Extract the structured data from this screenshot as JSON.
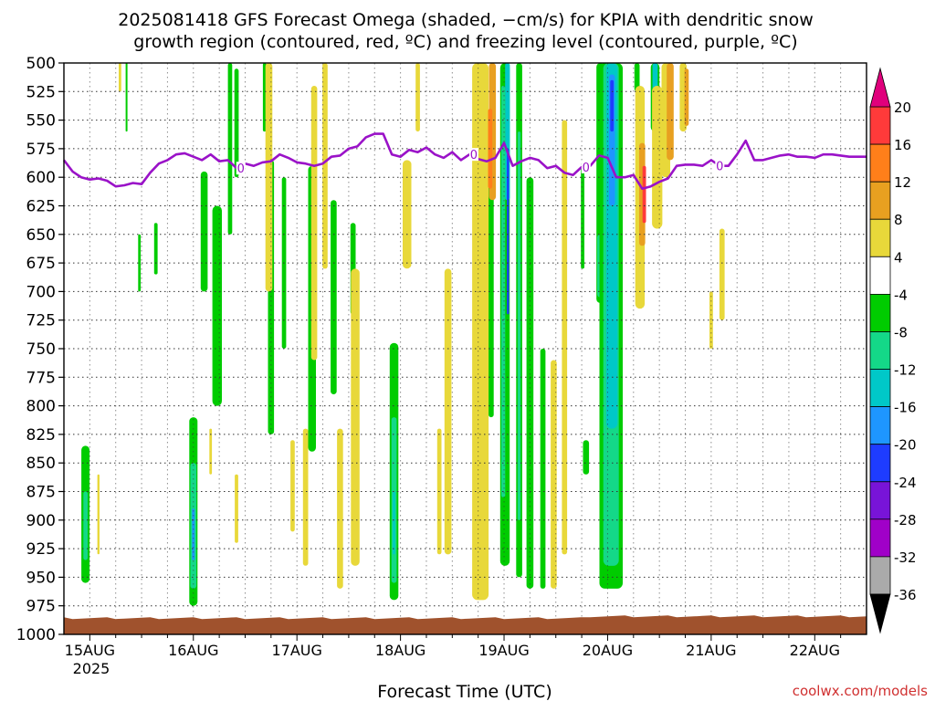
{
  "title_line1": "2025081418 GFS Forecast Omega (shaded, −cm/s) for KPIA with dendritic snow",
  "title_line2": "growth region (contoured, red, ºC) and freezing level (contoured, purple, ºC)",
  "credit": "coolwx.com/models",
  "chart_data": {
    "type": "heatmap",
    "xlabel": "Forecast Time (UTC)",
    "year_label": "2025",
    "x_unit": "hours since 2025-08-14 18Z",
    "xlim": [
      0,
      186
    ],
    "ylim": [
      1000,
      500
    ],
    "y_ticks": [
      500,
      525,
      550,
      575,
      600,
      625,
      650,
      675,
      700,
      725,
      750,
      775,
      800,
      825,
      850,
      875,
      900,
      925,
      950,
      975,
      1000
    ],
    "x_ticks": [
      {
        "t": 6,
        "label": "15AUG"
      },
      {
        "t": 30,
        "label": "16AUG"
      },
      {
        "t": 54,
        "label": "17AUG"
      },
      {
        "t": 78,
        "label": "18AUG"
      },
      {
        "t": 102,
        "label": "19AUG"
      },
      {
        "t": 126,
        "label": "20AUG"
      },
      {
        "t": 150,
        "label": "21AUG"
      },
      {
        "t": 174,
        "label": "22AUG"
      }
    ],
    "colorbar": {
      "levels": [
        20,
        16,
        12,
        8,
        4,
        -4,
        -8,
        -12,
        -16,
        -20,
        -24,
        -28,
        -32,
        -36
      ],
      "bins": [
        {
          "from": 16,
          "to": 20,
          "color": "#ff3a3a"
        },
        {
          "from": 12,
          "to": 16,
          "color": "#ff7f1a"
        },
        {
          "from": 8,
          "to": 12,
          "color": "#e8a020"
        },
        {
          "from": 4,
          "to": 8,
          "color": "#e8d83a"
        },
        {
          "from": -4,
          "to": 4,
          "color": "#ffffff"
        },
        {
          "from": -8,
          "to": -4,
          "color": "#00cc00"
        },
        {
          "from": -12,
          "to": -8,
          "color": "#14d888"
        },
        {
          "from": -16,
          "to": -12,
          "color": "#00c8c8"
        },
        {
          "from": -20,
          "to": -16,
          "color": "#1e96ff"
        },
        {
          "from": -24,
          "to": -20,
          "color": "#1e3cff"
        },
        {
          "from": -28,
          "to": -24,
          "color": "#7814d8"
        },
        {
          "from": -32,
          "to": -28,
          "color": "#a000c8"
        },
        {
          "from": -36,
          "to": -32,
          "color": "#aaaaaa"
        }
      ],
      "top_arrow_color": "#e0007c",
      "bottom_arrow_color": "#000000"
    },
    "freezing_level": {
      "color": "#9a12c8",
      "contour_label": "0",
      "times": [
        0,
        2,
        4,
        6,
        8,
        10,
        12,
        14,
        16,
        18,
        20,
        22,
        24,
        26,
        28,
        30,
        32,
        34,
        36,
        38,
        40,
        42,
        44,
        46,
        48,
        50,
        52,
        54,
        56,
        58,
        60,
        62,
        64,
        66,
        68,
        70,
        72,
        74,
        76,
        78,
        80,
        82,
        84,
        86,
        88,
        90,
        92,
        94,
        96,
        98,
        100,
        102,
        104,
        106,
        108,
        110,
        112,
        114,
        116,
        118,
        120,
        122,
        124,
        126,
        128,
        130,
        132,
        134,
        136,
        138,
        140,
        142,
        144,
        146,
        148,
        150,
        152,
        154,
        156,
        158,
        160,
        162,
        164,
        166,
        168,
        170,
        172,
        174,
        176,
        178,
        180,
        182,
        184,
        186
      ],
      "pressure": [
        585,
        595,
        600,
        602,
        601,
        603,
        608,
        607,
        605,
        606,
        596,
        588,
        585,
        580,
        579,
        582,
        585,
        580,
        586,
        585,
        592,
        588,
        590,
        587,
        586,
        580,
        583,
        587,
        588,
        590,
        588,
        582,
        581,
        575,
        573,
        565,
        562,
        562,
        580,
        582,
        576,
        578,
        574,
        580,
        583,
        578,
        585,
        580,
        584,
        586,
        583,
        570,
        590,
        586,
        583,
        585,
        592,
        590,
        596,
        598,
        591,
        590,
        581,
        583,
        600,
        600,
        598,
        610,
        608,
        604,
        601,
        590,
        589,
        589,
        590,
        585,
        590,
        590,
        580,
        568,
        585,
        585,
        583,
        581,
        580,
        582,
        582,
        583,
        580,
        580,
        581,
        582,
        582,
        582
      ]
    },
    "cells": [
      {
        "t": 5.0,
        "p0": 835,
        "p1": 955,
        "w": 1.9,
        "value": -6
      },
      {
        "t": 5.0,
        "p0": 875,
        "p1": 935,
        "w": 1.0,
        "value": -10
      },
      {
        "t": 30.0,
        "p0": 810,
        "p1": 975,
        "w": 1.9,
        "value": -6
      },
      {
        "t": 30.0,
        "p0": 850,
        "p1": 960,
        "w": 1.4,
        "value": -10
      },
      {
        "t": 30.0,
        "p0": 890,
        "p1": 935,
        "w": 0.6,
        "value": -17
      },
      {
        "t": 76.5,
        "p0": 745,
        "p1": 970,
        "w": 2.0,
        "value": -6
      },
      {
        "t": 76.5,
        "p0": 810,
        "p1": 955,
        "w": 1.2,
        "value": -10
      },
      {
        "t": 76.5,
        "p0": 875,
        "p1": 930,
        "w": 0.5,
        "value": -14
      },
      {
        "t": 35.5,
        "p0": 625,
        "p1": 800,
        "w": 2.2,
        "value": -6
      },
      {
        "t": 32.5,
        "p0": 595,
        "p1": 700,
        "w": 1.6,
        "value": -6
      },
      {
        "t": 38.5,
        "p0": 500,
        "p1": 650,
        "w": 1.0,
        "value": -6
      },
      {
        "t": 40.0,
        "p0": 505,
        "p1": 600,
        "w": 1.0,
        "value": -6
      },
      {
        "t": 46.5,
        "p0": 500,
        "p1": 560,
        "w": 0.8,
        "value": -6
      },
      {
        "t": 48.0,
        "p0": 585,
        "p1": 825,
        "w": 1.4,
        "value": -6
      },
      {
        "t": 51.0,
        "p0": 600,
        "p1": 750,
        "w": 1.0,
        "value": -6
      },
      {
        "t": 57.5,
        "p0": 590,
        "p1": 840,
        "w": 1.8,
        "value": -6
      },
      {
        "t": 62.5,
        "p0": 620,
        "p1": 790,
        "w": 1.4,
        "value": -6
      },
      {
        "t": 67.0,
        "p0": 640,
        "p1": 720,
        "w": 1.2,
        "value": -6
      },
      {
        "t": 17.5,
        "p0": 650,
        "p1": 700,
        "w": 0.6,
        "value": -6
      },
      {
        "t": 14.5,
        "p0": 500,
        "p1": 560,
        "w": 0.4,
        "value": -6
      },
      {
        "t": 99.0,
        "p0": 590,
        "p1": 810,
        "w": 1.2,
        "value": -6
      },
      {
        "t": 102.2,
        "p0": 500,
        "p1": 940,
        "w": 2.2,
        "value": -6
      },
      {
        "t": 102.8,
        "p0": 500,
        "p1": 620,
        "w": 1.1,
        "value": -14
      },
      {
        "t": 101.8,
        "p0": 520,
        "p1": 880,
        "w": 0.9,
        "value": -10
      },
      {
        "t": 102.9,
        "p0": 575,
        "p1": 720,
        "w": 0.5,
        "value": -22
      },
      {
        "t": 105.5,
        "p0": 500,
        "p1": 950,
        "w": 1.4,
        "value": -6
      },
      {
        "t": 105.5,
        "p0": 560,
        "p1": 900,
        "w": 0.7,
        "value": -10
      },
      {
        "t": 108.0,
        "p0": 600,
        "p1": 960,
        "w": 1.6,
        "value": -6
      },
      {
        "t": 111.0,
        "p0": 750,
        "p1": 960,
        "w": 1.2,
        "value": -6
      },
      {
        "t": 120.2,
        "p0": 590,
        "p1": 680,
        "w": 0.8,
        "value": -6
      },
      {
        "t": 121.0,
        "p0": 830,
        "p1": 860,
        "w": 1.4,
        "value": -6
      },
      {
        "t": 124.3,
        "p0": 500,
        "p1": 710,
        "w": 1.8,
        "value": -6
      },
      {
        "t": 124.3,
        "p0": 650,
        "p1": 705,
        "w": 1.4,
        "value": -10
      },
      {
        "t": 126.8,
        "p0": 500,
        "p1": 960,
        "w": 5.4,
        "value": -6
      },
      {
        "t": 126.8,
        "p0": 500,
        "p1": 940,
        "w": 3.6,
        "value": -10
      },
      {
        "t": 127.0,
        "p0": 500,
        "p1": 820,
        "w": 2.6,
        "value": -14
      },
      {
        "t": 127.0,
        "p0": 510,
        "p1": 625,
        "w": 1.4,
        "value": -18
      },
      {
        "t": 127.0,
        "p0": 515,
        "p1": 560,
        "w": 0.8,
        "value": -22
      },
      {
        "t": 132.8,
        "p0": 500,
        "p1": 525,
        "w": 1.2,
        "value": -6
      },
      {
        "t": 137.0,
        "p0": 500,
        "p1": 560,
        "w": 2.0,
        "value": -6
      },
      {
        "t": 137.0,
        "p0": 500,
        "p1": 525,
        "w": 1.2,
        "value": -14
      },
      {
        "t": 21.3,
        "p0": 640,
        "p1": 685,
        "w": 0.8,
        "value": -6
      },
      {
        "t": 47.5,
        "p0": 500,
        "p1": 700,
        "w": 1.6,
        "value": 6
      },
      {
        "t": 58.0,
        "p0": 520,
        "p1": 760,
        "w": 1.4,
        "value": 6
      },
      {
        "t": 60.5,
        "p0": 500,
        "p1": 680,
        "w": 1.2,
        "value": 6
      },
      {
        "t": 67.5,
        "p0": 680,
        "p1": 940,
        "w": 2.0,
        "value": 6
      },
      {
        "t": 64.0,
        "p0": 820,
        "p1": 960,
        "w": 1.4,
        "value": 6
      },
      {
        "t": 56.0,
        "p0": 820,
        "p1": 940,
        "w": 1.2,
        "value": 6
      },
      {
        "t": 53.0,
        "p0": 830,
        "p1": 910,
        "w": 1.0,
        "value": 6
      },
      {
        "t": 40.0,
        "p0": 860,
        "p1": 920,
        "w": 0.8,
        "value": 6
      },
      {
        "t": 34.0,
        "p0": 820,
        "p1": 860,
        "w": 0.6,
        "value": 6
      },
      {
        "t": 79.5,
        "p0": 585,
        "p1": 680,
        "w": 2.0,
        "value": 6
      },
      {
        "t": 82.0,
        "p0": 500,
        "p1": 560,
        "w": 1.0,
        "value": 6
      },
      {
        "t": 89.0,
        "p0": 680,
        "p1": 930,
        "w": 1.6,
        "value": 6
      },
      {
        "t": 87.0,
        "p0": 820,
        "p1": 930,
        "w": 1.0,
        "value": 6
      },
      {
        "t": 96.5,
        "p0": 500,
        "p1": 970,
        "w": 3.8,
        "value": 6
      },
      {
        "t": 99.3,
        "p0": 500,
        "p1": 620,
        "w": 1.6,
        "value": 10
      },
      {
        "t": 98.8,
        "p0": 540,
        "p1": 610,
        "w": 1.0,
        "value": 14
      },
      {
        "t": 97.0,
        "p0": 810,
        "p1": 960,
        "w": 2.0,
        "value": 6
      },
      {
        "t": 113.5,
        "p0": 760,
        "p1": 960,
        "w": 1.4,
        "value": 6
      },
      {
        "t": 116.0,
        "p0": 550,
        "p1": 930,
        "w": 1.2,
        "value": 6
      },
      {
        "t": 13.0,
        "p0": 500,
        "p1": 525,
        "w": 0.6,
        "value": 6
      },
      {
        "t": 8.0,
        "p0": 860,
        "p1": 930,
        "w": 0.5,
        "value": 6
      },
      {
        "t": 133.5,
        "p0": 520,
        "p1": 715,
        "w": 2.2,
        "value": 6
      },
      {
        "t": 134.0,
        "p0": 570,
        "p1": 660,
        "w": 1.4,
        "value": 10
      },
      {
        "t": 134.5,
        "p0": 590,
        "p1": 640,
        "w": 0.8,
        "value": 16
      },
      {
        "t": 137.5,
        "p0": 520,
        "p1": 645,
        "w": 2.4,
        "value": 6
      },
      {
        "t": 139.5,
        "p0": 500,
        "p1": 600,
        "w": 2.0,
        "value": 6
      },
      {
        "t": 140.5,
        "p0": 500,
        "p1": 585,
        "w": 1.6,
        "value": 10
      },
      {
        "t": 143.5,
        "p0": 500,
        "p1": 560,
        "w": 1.6,
        "value": 6
      },
      {
        "t": 144.3,
        "p0": 505,
        "p1": 555,
        "w": 1.0,
        "value": 10
      },
      {
        "t": 152.5,
        "p0": 645,
        "p1": 725,
        "w": 1.2,
        "value": 6
      },
      {
        "t": 150.0,
        "p0": 700,
        "p1": 750,
        "w": 0.8,
        "value": 6
      }
    ]
  }
}
